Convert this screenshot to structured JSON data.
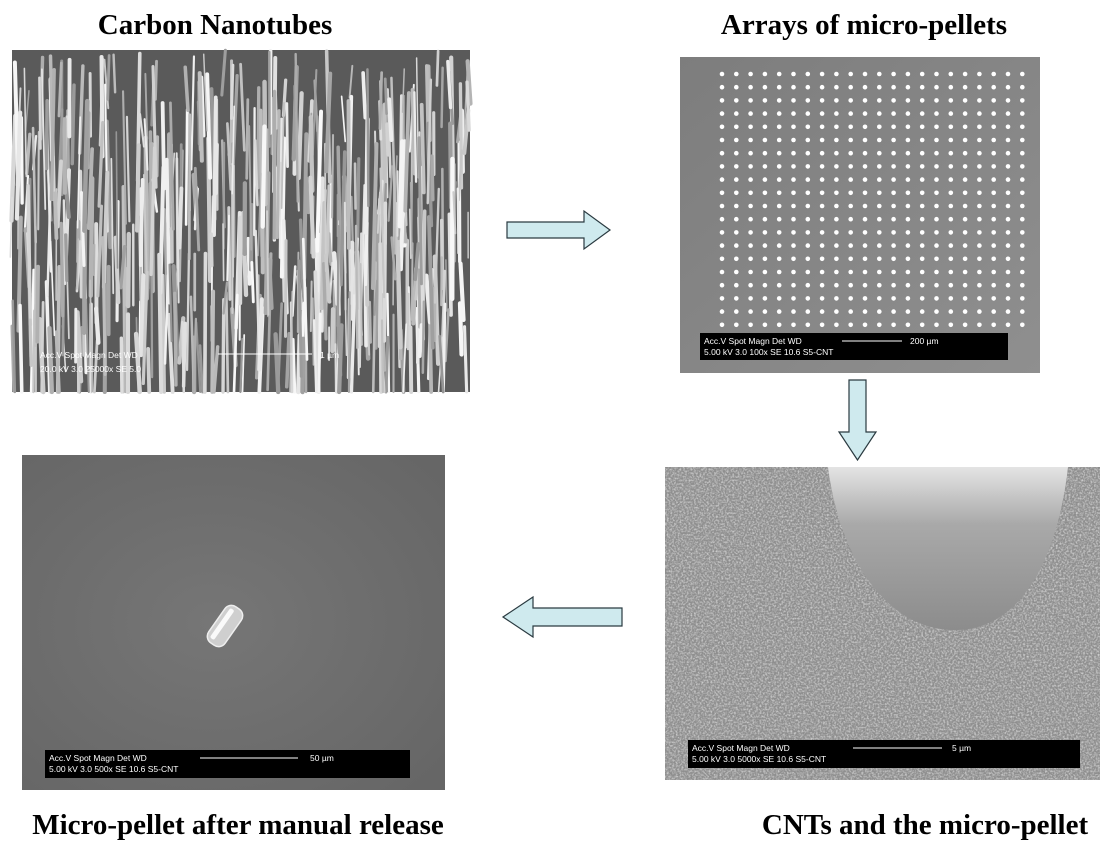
{
  "panels": [
    {
      "title": "Carbon Nanotubes",
      "databar": {
        "header": "Acc.V  Spot Magn   Det  WD",
        "params": "20.0 kV 3.0  25000x  SE  5.0",
        "scale": "1 µm"
      }
    },
    {
      "title": "Arrays of micro-pellets",
      "databar": {
        "header": "Acc.V  Spot Magn   Det  WD",
        "params": "5.00 kV 3.0  100x   SE  10.6  S5-CNT",
        "scale": "200 µm"
      }
    },
    {
      "title": "CNTs and the micro-pellet",
      "databar": {
        "header": "Acc.V  Spot Magn   Det  WD",
        "params": "5.00 kV 3.0  5000x   SE  10.6  S5-CNT",
        "scale": "5 µm"
      }
    },
    {
      "title": "Micro-pellet after manual release",
      "databar": {
        "header": "Acc.V  Spot Magn   Det  WD",
        "params": "5.00 kV 3.0  500x   SE  10.6  S5-CNT",
        "scale": "50 µm"
      }
    }
  ]
}
